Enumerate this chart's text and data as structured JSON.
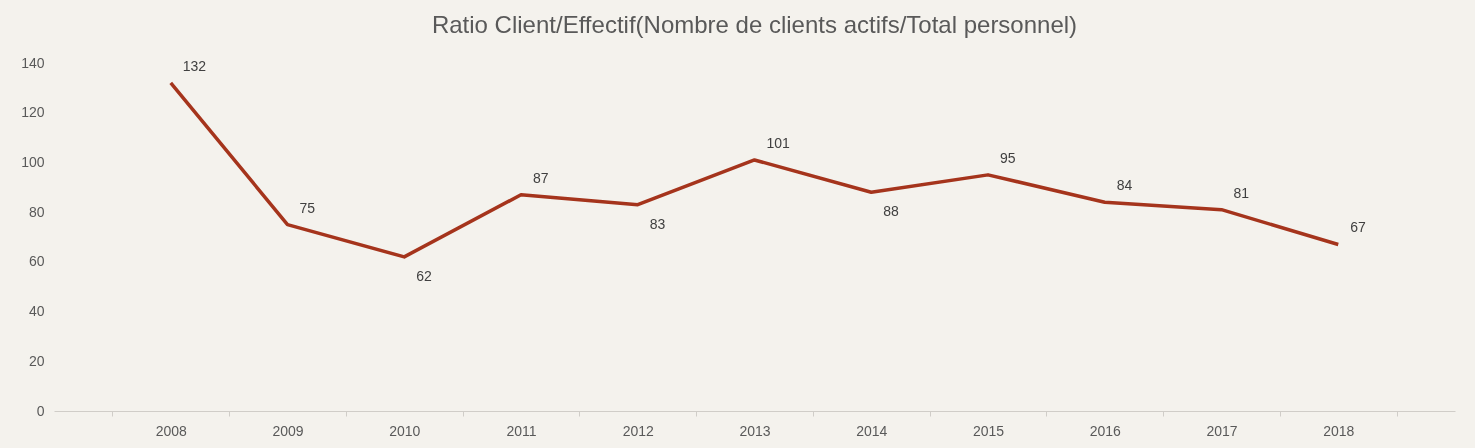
{
  "chart_data": {
    "type": "line",
    "title": "Ratio Client/Effectif(Nombre de clients actifs/Total personnel)",
    "categories": [
      "2008",
      "2009",
      "2010",
      "2011",
      "2012",
      "2013",
      "2014",
      "2015",
      "2016",
      "2017",
      "2018"
    ],
    "series": [
      {
        "color": "#a5341c",
        "values": [
          132,
          75,
          62,
          87,
          83,
          101,
          88,
          95,
          84,
          81,
          67
        ]
      }
    ],
    "ylim": [
      0,
      140
    ],
    "yticks": [
      0,
      20,
      40,
      60,
      80,
      100,
      120,
      140
    ],
    "grid": false,
    "data_labels": true,
    "marker": "none",
    "line_style": "solid"
  }
}
